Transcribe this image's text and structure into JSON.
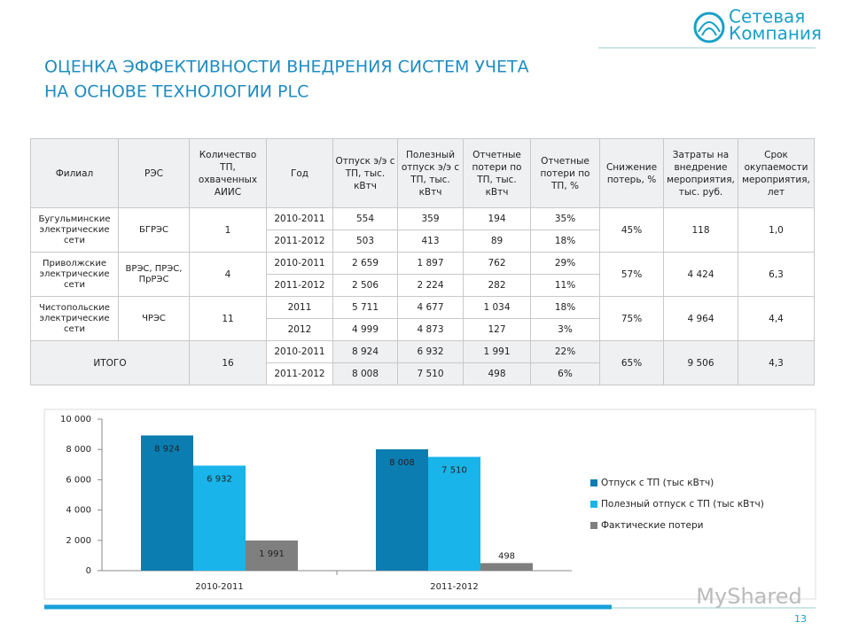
{
  "header": {
    "title_lines": [
      "ОЦЕНКА ЭФФЕКТИВНОСТИ ВНЕДРЕНИЯ СИСТЕМ УЧЕТА",
      "НА ОСНОВЕ ТЕХНОЛОГИИ PLC"
    ],
    "logo_lines": [
      "Сетевая",
      "Компания"
    ]
  },
  "table": {
    "columns": [
      "Филиал",
      "РЭС",
      "Количество ТП, охваченных АИИС",
      "Год",
      "Отпуск э/э с ТП, тыс. кВтч",
      "Полезный отпуск э/э с ТП, тыс. кВтч",
      "Отчетные потери по ТП, тыс. кВтч",
      "Отчетные потери по ТП, %",
      "Снижение потерь, %",
      "Затраты на внедрение мероприятия, тыс. руб.",
      "Срок окупаемости мероприятия, лет"
    ],
    "groups": [
      {
        "filial": "Бугульминские электрические сети",
        "res": "БГРЭС",
        "tp": "1",
        "rows": [
          [
            "2010-2011",
            "554",
            "359",
            "194",
            "35%"
          ],
          [
            "2011-2012",
            "503",
            "413",
            "89",
            "18%"
          ]
        ],
        "reduction": "45%",
        "cost": "118",
        "payback": "1,0"
      },
      {
        "filial": "Приволжские электрические сети",
        "res": "ВРЭС, ПРЭС, ПрРЭС",
        "tp": "4",
        "rows": [
          [
            "2010-2011",
            "2 659",
            "1 897",
            "762",
            "29%"
          ],
          [
            "2011-2012",
            "2 506",
            "2 224",
            "282",
            "11%"
          ]
        ],
        "reduction": "57%",
        "cost": "4 424",
        "payback": "6,3"
      },
      {
        "filial": "Чистопольские электрические сети",
        "res": "ЧРЭС",
        "tp": "11",
        "rows": [
          [
            "2011",
            "5 711",
            "4 677",
            "1 034",
            "18%"
          ],
          [
            "2012",
            "4 999",
            "4 873",
            "127",
            "3%"
          ]
        ],
        "reduction": "75%",
        "cost": "4 964",
        "payback": "4,4"
      }
    ],
    "total": {
      "label": "ИТОГО",
      "tp": "16",
      "rows": [
        [
          "2010-2011",
          "8 924",
          "6 932",
          "1 991",
          "22%"
        ],
        [
          "2011-2012",
          "8 008",
          "7 510",
          "498",
          "6%"
        ]
      ],
      "reduction": "65%",
      "cost": "9 506",
      "payback": "4,3"
    }
  },
  "chart_data": {
    "type": "bar",
    "categories": [
      "2010-2011",
      "2011-2012"
    ],
    "series": [
      {
        "name": "Отпуск с ТП (тыс кВтч)",
        "color": "#0b7db0",
        "values": [
          8924,
          8008
        ],
        "value_labels": [
          "8 924",
          "8 008"
        ]
      },
      {
        "name": "Полезный отпуск с ТП (тыс кВтч)",
        "color": "#18b4ea",
        "values": [
          6932,
          7510
        ],
        "value_labels": [
          "6 932",
          "7 510"
        ]
      },
      {
        "name": "Фактические потери",
        "color": "#7f7f7f",
        "values": [
          1991,
          498
        ],
        "value_labels": [
          "1 991",
          "498"
        ]
      }
    ],
    "ylim": [
      0,
      10000
    ],
    "yticks": [
      0,
      {
        "value": 2000,
        "label": "2 000"
      },
      {
        "value": 4000,
        "label": "4 000"
      },
      {
        "value": 6000,
        "label": "6 000"
      },
      {
        "value": 8000,
        "label": "8 000"
      },
      {
        "value": 10000,
        "label": "10 000"
      }
    ],
    "legend": "right"
  },
  "page_number": "13",
  "watermark": "MyShared"
}
